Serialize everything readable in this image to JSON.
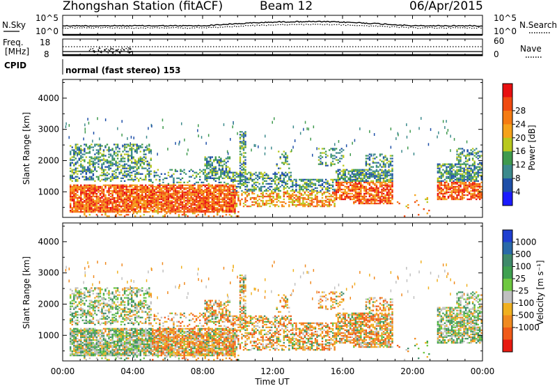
{
  "header": {
    "title": "Zhongshan Station (fitACF)",
    "beam": "Beam 12",
    "date": "06/Apr/2015"
  },
  "top_panel": {
    "left_label": "N.Sky",
    "right_label": "N.Search",
    "left_ticks": [
      "10^5",
      "10^0"
    ],
    "right_ticks": [
      "10^5",
      "10^0"
    ]
  },
  "freq_panel": {
    "left_label_1": "Freq.",
    "left_label_2": "[MHz]",
    "right_label": "Nave",
    "left_ticks": [
      "18",
      "8"
    ],
    "right_ticks": [
      "60",
      "0"
    ]
  },
  "cpid": {
    "label": "CPID",
    "text": "normal (fast stereo) 153"
  },
  "time_axis": {
    "ticks": [
      "00:00",
      "04:00",
      "08:00",
      "12:00",
      "16:00",
      "20:00",
      "00:00"
    ],
    "label": "Time UT"
  },
  "chart_data": [
    {
      "type": "heatmap",
      "title": "",
      "xlabel": "Time UT",
      "ylabel": "Slant Range [km]",
      "x_range_hours": [
        0,
        24
      ],
      "ylim": [
        180,
        4600
      ],
      "yticks": [
        "1000",
        "2000",
        "3000",
        "4000"
      ],
      "yticks_values": [
        1000,
        2000,
        3000,
        4000
      ],
      "colorbar": {
        "label": "Power [dB]",
        "tick_labels": [
          "4",
          "8",
          "12",
          "16",
          "20",
          "24",
          "28"
        ],
        "colors": [
          "#1b1bff",
          "#1e4fa8",
          "#3c8a8c",
          "#3f9a4e",
          "#b8c81e",
          "#f5a21b",
          "#f57b12",
          "#f04a10",
          "#e81010"
        ]
      }
    },
    {
      "type": "heatmap",
      "title": "",
      "xlabel": "Time UT",
      "ylabel": "Slant Range [km]",
      "x_range_hours": [
        0,
        24
      ],
      "ylim": [
        180,
        4600
      ],
      "yticks": [
        "1000",
        "2000",
        "3000",
        "4000"
      ],
      "yticks_values": [
        1000,
        2000,
        3000,
        4000
      ],
      "colorbar": {
        "label": "Velocity [m s⁻¹]",
        "tick_labels": [
          "1000",
          "500",
          "100",
          "25",
          "-25",
          "-100",
          "-500",
          "-1000"
        ],
        "colors": [
          "#1f3fd0",
          "#2a6aa8",
          "#3f8a6a",
          "#3fa050",
          "#6ec840",
          "#c0c0c0",
          "#f0b020",
          "#f08a20",
          "#f05a18",
          "#e81a10"
        ]
      }
    }
  ]
}
